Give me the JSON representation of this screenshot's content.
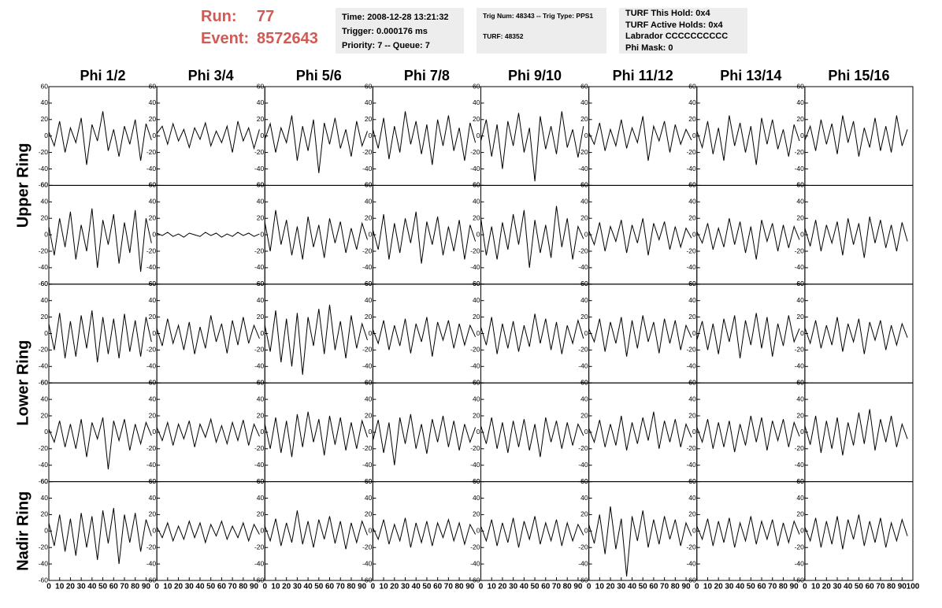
{
  "header": {
    "run_label": "Run:",
    "run": "77",
    "event_label": "Event:",
    "event": "8572643",
    "boxes": [
      [
        "Time: 2008-12-28 13:21:32",
        "Trigger: 0.000176 ms",
        "Priority: 7 -- Queue: 7"
      ],
      [
        "Trig Num: 48343 -- Trig Type: PPS1",
        "TURF: 48352"
      ],
      [
        "TURF This Hold: 0x4",
        "TURF Active Holds: 0x4",
        "Labrador CCCCCCCCCC",
        "Phi Mask: 0"
      ]
    ]
  },
  "chart_data": {
    "type": "line",
    "color": "#000000",
    "columns": [
      "Phi 1/2",
      "Phi 3/4",
      "Phi 5/6",
      "Phi 7/8",
      "Phi 9/10",
      "Phi 11/12",
      "Phi 13/14",
      "Phi 15/16"
    ],
    "ring_labels": [
      "Upper Ring",
      "Lower Ring",
      "Nadir Ring"
    ],
    "xlim": [
      0,
      100
    ],
    "xticks": [
      0,
      10,
      20,
      30,
      40,
      50,
      60,
      70,
      80,
      90,
      100
    ],
    "ylim": [
      -60,
      60
    ],
    "yticks": [
      -60,
      -40,
      -20,
      0,
      20,
      40,
      60
    ],
    "x": [
      0,
      5,
      10,
      15,
      20,
      25,
      30,
      35,
      40,
      45,
      50,
      55,
      60,
      65,
      70,
      75,
      80,
      85,
      90,
      95
    ],
    "panels": [
      [
        [
          5,
          -12,
          18,
          -20,
          10,
          -8,
          22,
          -35,
          14,
          -6,
          30,
          -18,
          8,
          -25,
          12,
          -10,
          20,
          -30,
          15,
          -5
        ],
        [
          3,
          12,
          -10,
          15,
          -6,
          8,
          -14,
          10,
          -4,
          16,
          -12,
          6,
          -8,
          12,
          -20,
          18,
          -6,
          10,
          -15,
          8
        ],
        [
          -4,
          15,
          -20,
          10,
          -8,
          25,
          -30,
          12,
          -18,
          20,
          -45,
          16,
          -10,
          22,
          -15,
          8,
          -25,
          18,
          -12,
          6
        ],
        [
          8,
          -15,
          22,
          -28,
          12,
          -20,
          30,
          -10,
          18,
          -22,
          14,
          -35,
          20,
          -12,
          25,
          -18,
          10,
          -30,
          16,
          -8
        ],
        [
          -6,
          20,
          -25,
          14,
          -40,
          18,
          -12,
          28,
          -20,
          10,
          -55,
          24,
          -16,
          12,
          -22,
          30,
          -14,
          8,
          -26,
          12
        ],
        [
          4,
          -10,
          16,
          -18,
          8,
          -12,
          20,
          -15,
          10,
          -8,
          24,
          -30,
          12,
          -6,
          18,
          -20,
          14,
          -10,
          8,
          -5
        ],
        [
          6,
          -14,
          18,
          -22,
          10,
          -30,
          25,
          -12,
          16,
          -20,
          12,
          -35,
          22,
          -10,
          20,
          -16,
          8,
          -25,
          14,
          -6
        ],
        [
          -5,
          12,
          -18,
          20,
          -10,
          15,
          -22,
          25,
          -8,
          18,
          -25,
          10,
          -14,
          22,
          -18,
          12,
          -20,
          25,
          -12,
          8
        ]
      ],
      [
        [
          10,
          -25,
          20,
          -15,
          28,
          -30,
          12,
          -20,
          32,
          -40,
          18,
          -12,
          25,
          -35,
          15,
          -22,
          30,
          -45,
          20,
          -10
        ],
        [
          2,
          -1,
          3,
          -2,
          1,
          -3,
          2,
          0,
          -2,
          3,
          -1,
          2,
          -3,
          1,
          -2,
          3,
          -1,
          2,
          -2,
          1
        ],
        [
          15,
          -20,
          30,
          -12,
          18,
          -25,
          10,
          -30,
          22,
          -15,
          12,
          -28,
          20,
          -10,
          16,
          -22,
          8,
          -18,
          14,
          -6
        ],
        [
          6,
          -18,
          25,
          -30,
          14,
          -22,
          20,
          -10,
          28,
          -35,
          16,
          -12,
          22,
          -25,
          10,
          -20,
          18,
          -30,
          12,
          -8
        ],
        [
          20,
          -25,
          10,
          -30,
          15,
          -18,
          25,
          -12,
          30,
          -40,
          18,
          -22,
          12,
          -28,
          35,
          -15,
          20,
          -30,
          10,
          -5
        ],
        [
          5,
          -12,
          15,
          -20,
          10,
          -8,
          18,
          -22,
          12,
          -10,
          20,
          -25,
          14,
          -6,
          16,
          -18,
          10,
          -15,
          8,
          -4
        ],
        [
          4,
          -10,
          14,
          -18,
          8,
          -15,
          20,
          -12,
          16,
          -22,
          10,
          -30,
          18,
          -8,
          14,
          -20,
          12,
          -16,
          10,
          -6
        ],
        [
          8,
          -14,
          18,
          -20,
          12,
          -10,
          16,
          -25,
          20,
          -12,
          14,
          -28,
          22,
          -10,
          18,
          -16,
          12,
          -20,
          15,
          -8
        ]
      ],
      [
        [
          12,
          -20,
          25,
          -30,
          15,
          -28,
          22,
          -18,
          28,
          -35,
          20,
          -25,
          18,
          -30,
          24,
          -22,
          16,
          -28,
          20,
          -10
        ],
        [
          6,
          -15,
          18,
          -12,
          10,
          -20,
          14,
          -25,
          8,
          -18,
          22,
          -10,
          12,
          -24,
          16,
          -14,
          20,
          -12,
          10,
          -6
        ],
        [
          10,
          -22,
          28,
          -35,
          18,
          -40,
          25,
          -50,
          20,
          -15,
          30,
          -25,
          35,
          -20,
          15,
          -30,
          22,
          -18,
          12,
          -8
        ],
        [
          5,
          -12,
          16,
          -20,
          10,
          -15,
          18,
          -24,
          12,
          -10,
          20,
          -28,
          14,
          -8,
          16,
          -18,
          12,
          -14,
          10,
          -4
        ],
        [
          8,
          -14,
          20,
          -25,
          12,
          -18,
          15,
          -22,
          10,
          -16,
          24,
          -12,
          18,
          -20,
          14,
          -25,
          10,
          -12,
          16,
          -6
        ],
        [
          6,
          -10,
          18,
          -22,
          14,
          -12,
          20,
          -28,
          16,
          -18,
          22,
          -10,
          14,
          -24,
          18,
          -12,
          16,
          -20,
          10,
          -5
        ],
        [
          -8,
          15,
          -20,
          12,
          -25,
          18,
          -10,
          22,
          -30,
          16,
          -14,
          25,
          -18,
          20,
          -28,
          12,
          -15,
          22,
          -10,
          6
        ],
        [
          7,
          -12,
          16,
          -18,
          10,
          -14,
          20,
          -22,
          12,
          -10,
          18,
          -25,
          14,
          -8,
          16,
          -20,
          10,
          -14,
          12,
          -5
        ]
      ],
      [
        [
          4,
          -12,
          14,
          -18,
          10,
          -20,
          16,
          -30,
          12,
          -8,
          18,
          -45,
          14,
          -10,
          16,
          -22,
          10,
          -14,
          12,
          -4
        ],
        [
          6,
          -10,
          12,
          -16,
          10,
          -8,
          14,
          -18,
          10,
          -6,
          16,
          -12,
          8,
          -14,
          12,
          -10,
          15,
          -16,
          10,
          -5
        ],
        [
          10,
          -20,
          18,
          -25,
          14,
          -30,
          22,
          -18,
          25,
          -12,
          16,
          -28,
          20,
          -15,
          18,
          -22,
          12,
          -20,
          14,
          -6
        ],
        [
          -10,
          15,
          -25,
          12,
          -40,
          18,
          -14,
          22,
          -20,
          10,
          -26,
          16,
          -12,
          20,
          -18,
          14,
          -22,
          10,
          -12,
          6
        ],
        [
          8,
          -14,
          18,
          -20,
          12,
          -25,
          14,
          -18,
          16,
          -22,
          10,
          -30,
          18,
          -12,
          14,
          -20,
          12,
          -16,
          10,
          -4
        ],
        [
          5,
          -12,
          15,
          -18,
          10,
          -16,
          20,
          -22,
          12,
          -14,
          18,
          -10,
          25,
          -20,
          14,
          -12,
          16,
          -18,
          10,
          -6
        ],
        [
          6,
          -12,
          16,
          -20,
          12,
          -18,
          14,
          -24,
          10,
          -16,
          20,
          -12,
          18,
          -22,
          14,
          -10,
          16,
          -18,
          12,
          -5
        ],
        [
          8,
          -15,
          20,
          -25,
          14,
          -20,
          18,
          -28,
          12,
          -16,
          24,
          -14,
          28,
          -22,
          16,
          -12,
          20,
          -18,
          10,
          -8
        ]
      ],
      [
        [
          10,
          -18,
          20,
          -25,
          15,
          -30,
          22,
          -20,
          18,
          -35,
          25,
          -15,
          28,
          -40,
          20,
          -14,
          22,
          -25,
          14,
          -6
        ],
        [
          5,
          -8,
          10,
          -12,
          6,
          -10,
          12,
          -8,
          10,
          -14,
          8,
          -6,
          12,
          -10,
          6,
          -8,
          10,
          -12,
          8,
          -4
        ],
        [
          6,
          -12,
          15,
          -18,
          10,
          -14,
          25,
          -16,
          12,
          -20,
          14,
          -10,
          18,
          -15,
          12,
          -22,
          10,
          -14,
          12,
          -5
        ],
        [
          4,
          -10,
          14,
          -16,
          8,
          -12,
          16,
          -20,
          10,
          -14,
          12,
          -18,
          10,
          -8,
          14,
          -12,
          10,
          -16,
          8,
          -4
        ],
        [
          6,
          -12,
          14,
          -18,
          10,
          -14,
          16,
          -20,
          12,
          -10,
          18,
          -16,
          10,
          -12,
          14,
          -18,
          10,
          -12,
          8,
          -5
        ],
        [
          8,
          -15,
          20,
          -28,
          30,
          -22,
          15,
          -55,
          18,
          -12,
          25,
          -20,
          14,
          -16,
          18,
          -10,
          14,
          -18,
          10,
          -6
        ],
        [
          6,
          -10,
          15,
          -18,
          12,
          -14,
          16,
          -20,
          10,
          -12,
          18,
          -16,
          12,
          -10,
          14,
          -18,
          10,
          -14,
          12,
          -4
        ],
        [
          5,
          -12,
          16,
          -20,
          12,
          -16,
          18,
          -22,
          14,
          -10,
          20,
          -18,
          12,
          -14,
          16,
          -20,
          10,
          -12,
          14,
          -6
        ]
      ]
    ]
  }
}
